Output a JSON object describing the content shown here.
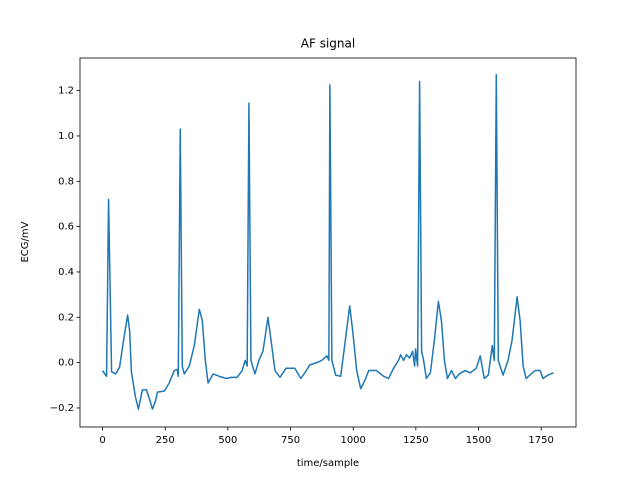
{
  "chart_data": {
    "type": "line",
    "title": "AF signal",
    "x_label": "time/sample",
    "y_label": "ECG/mV",
    "xlim": [
      -90,
      1889
    ],
    "ylim": [
      -0.284,
      1.344
    ],
    "xticks": [
      0,
      250,
      500,
      750,
      1000,
      1250,
      1500,
      1750
    ],
    "yticks": [
      {
        "value": -0.2,
        "label": "−0.2"
      },
      {
        "value": 0,
        "label": "0.0"
      },
      {
        "value": 0.2,
        "label": "0.2"
      },
      {
        "value": 0.4,
        "label": "0.4"
      },
      {
        "value": 0.6,
        "label": "0.6"
      },
      {
        "value": 0.8,
        "label": "0.8"
      },
      {
        "value": 1.0,
        "label": "1.0"
      },
      {
        "value": 1.2,
        "label": "1.2"
      }
    ],
    "grid": false,
    "x": [
      0,
      12,
      16,
      24,
      36,
      52,
      68,
      84,
      100,
      108,
      115,
      131,
      143,
      159,
      175,
      187,
      199,
      211,
      219,
      247,
      266,
      286,
      298,
      302,
      310,
      318,
      326,
      346,
      366,
      386,
      398,
      410,
      421,
      441,
      465,
      493,
      513,
      537,
      557,
      569,
      577,
      584,
      592,
      608,
      624,
      640,
      660,
      672,
      688,
      708,
      732,
      767,
      791,
      807,
      827,
      855,
      875,
      895,
      903,
      907,
      915,
      930,
      950,
      966,
      986,
      998,
      1014,
      1030,
      1046,
      1062,
      1093,
      1121,
      1141,
      1161,
      1181,
      1189,
      1201,
      1213,
      1225,
      1237,
      1245,
      1249,
      1257,
      1265,
      1273,
      1281,
      1292,
      1308,
      1324,
      1340,
      1352,
      1364,
      1376,
      1392,
      1408,
      1423,
      1447,
      1467,
      1491,
      1507,
      1523,
      1539,
      1555,
      1563,
      1571,
      1579,
      1598,
      1618,
      1634,
      1654,
      1666,
      1678,
      1690,
      1710,
      1726,
      1746,
      1757,
      1777,
      1799
    ],
    "series": [
      {
        "name": "ECG",
        "color": "#1f77b4",
        "values": [
          -0.035,
          -0.055,
          -0.06,
          0.72,
          -0.04,
          -0.05,
          -0.02,
          0.1,
          0.21,
          0.14,
          -0.04,
          -0.15,
          -0.205,
          -0.12,
          -0.12,
          -0.16,
          -0.205,
          -0.17,
          -0.13,
          -0.125,
          -0.09,
          -0.035,
          -0.03,
          -0.06,
          1.03,
          -0.015,
          -0.05,
          -0.015,
          0.075,
          0.235,
          0.185,
          0.01,
          -0.09,
          -0.05,
          -0.06,
          -0.07,
          -0.065,
          -0.065,
          -0.035,
          0.01,
          -0.015,
          1.145,
          0.01,
          -0.05,
          0.01,
          0.05,
          0.2,
          0.1,
          -0.035,
          -0.065,
          -0.025,
          -0.025,
          -0.07,
          -0.045,
          -0.01,
          0,
          0.01,
          0.03,
          0.01,
          1.225,
          0.01,
          -0.055,
          -0.06,
          0.075,
          0.25,
          0.14,
          -0.035,
          -0.115,
          -0.08,
          -0.035,
          -0.035,
          -0.06,
          -0.07,
          -0.025,
          0.01,
          0.035,
          0.01,
          0.035,
          0.02,
          0.05,
          -0.015,
          0.06,
          -0.015,
          1.24,
          0.05,
          0.01,
          -0.07,
          -0.045,
          0.1,
          0.27,
          0.185,
          0.01,
          -0.07,
          -0.035,
          -0.07,
          -0.05,
          -0.035,
          -0.045,
          -0.025,
          0.03,
          -0.07,
          -0.055,
          0.075,
          0.01,
          1.27,
          0.01,
          -0.055,
          0.01,
          0.1,
          0.29,
          0.185,
          -0.015,
          -0.07,
          -0.05,
          -0.035,
          -0.035,
          -0.07,
          -0.055,
          -0.045
        ]
      }
    ]
  }
}
